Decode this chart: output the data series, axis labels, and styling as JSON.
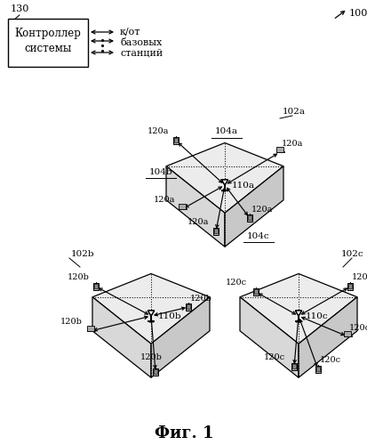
{
  "title": "Фиг. 1",
  "title_fontsize": 13,
  "background_color": "#ffffff",
  "fig_label": "100",
  "controller_label": "130",
  "controller_text_line1": "Контроллер",
  "controller_text_line2": "системы",
  "arrow_text_line1": "к/от",
  "arrow_text_line2": "базовых",
  "arrow_text_line3": "станций",
  "cell_label_a": "102a",
  "cell_label_b": "102b",
  "cell_label_c": "102c",
  "sector_label_a": "104a",
  "sector_label_b": "104b",
  "sector_label_c": "104c",
  "bs_label_a": "110a",
  "bs_label_b": "110b",
  "bs_label_c": "110c",
  "ue_label_a": "120a",
  "ue_label_b": "120b",
  "ue_label_c": "120c",
  "top_face_color": "#ececec",
  "left_face_color": "#d8d8d8",
  "right_face_color": "#c8c8c8",
  "edge_color": "#000000",
  "line_width": 0.9,
  "dashed_lw": 0.75,
  "arrow_lw": 0.85,
  "font_size_main": 7.5,
  "font_size_label": 7.5
}
